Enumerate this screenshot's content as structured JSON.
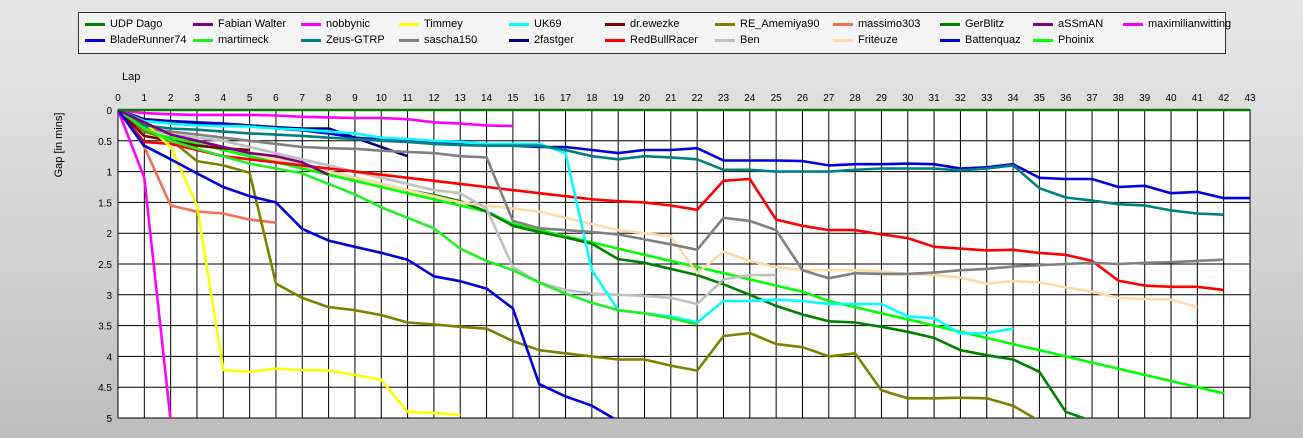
{
  "chart_data": {
    "type": "line",
    "xlabel": "Lap",
    "ylabel": "Gap [in mins]",
    "xlim": [
      0,
      43
    ],
    "ylim": [
      0,
      5
    ],
    "x_ticks": [
      0,
      1,
      2,
      3,
      4,
      5,
      6,
      7,
      8,
      9,
      10,
      11,
      12,
      13,
      14,
      15,
      16,
      17,
      18,
      19,
      20,
      21,
      22,
      23,
      24,
      25,
      26,
      27,
      28,
      29,
      30,
      31,
      32,
      33,
      34,
      35,
      36,
      37,
      38,
      39,
      40,
      41,
      42,
      43
    ],
    "y_ticks": [
      {
        "value": 0,
        "label": "0"
      },
      {
        "value": 0.5,
        "label": "0.5"
      },
      {
        "value": 1,
        "label": "1"
      },
      {
        "value": 1.5,
        "label": "1.5"
      },
      {
        "value": 2,
        "label": "2"
      },
      {
        "value": 2.5,
        "label": "2.5"
      },
      {
        "value": 3,
        "label": "3"
      },
      {
        "value": 3.5,
        "label": "3.5"
      },
      {
        "value": 4,
        "label": "4"
      },
      {
        "value": 4.5,
        "label": "4.5"
      },
      {
        "value": 5,
        "label": "5"
      }
    ],
    "y_inverted": true,
    "grid": true,
    "legend_position": "top",
    "series": [
      {
        "name": "UDP Dago",
        "color": "#008000",
        "values": [
          0,
          0,
          0,
          0,
          0,
          0,
          0,
          0,
          0,
          0,
          0,
          0,
          0,
          0,
          0,
          0,
          0,
          0,
          0,
          0,
          0,
          0,
          0,
          0,
          0,
          0,
          0,
          0,
          0,
          0,
          0,
          0,
          0,
          0,
          0,
          0,
          0,
          0,
          0,
          0,
          0,
          0,
          0,
          0
        ]
      },
      {
        "name": "BladeRunner74",
        "color": "#0000e0",
        "values": [
          0,
          0.58,
          0.8,
          1.03,
          1.25,
          1.4,
          1.5,
          1.93,
          2.12,
          2.22,
          2.32,
          2.43,
          2.7,
          2.78,
          2.9,
          3.22,
          4.45,
          4.65,
          4.8,
          5.05
        ]
      },
      {
        "name": "Fabian Walter",
        "color": "#800080",
        "values": [
          0,
          0.2,
          0.4,
          0.5,
          0.6,
          0.7,
          0.75,
          0.85,
          1.05
        ]
      },
      {
        "name": "martimeck",
        "color": "#22ee22",
        "values": [
          0,
          0.3,
          0.5,
          0.63,
          0.75,
          0.87,
          0.95,
          1.03,
          1.2,
          1.37,
          1.58,
          1.75,
          1.92,
          2.25,
          2.45,
          2.6,
          2.8,
          2.98,
          3.13,
          3.25,
          3.3,
          3.38,
          3.48
        ]
      },
      {
        "name": "nobbynic",
        "color": "#ff00ff",
        "values": [
          0,
          0.05,
          0.07,
          0.08,
          0.08,
          0.08,
          0.09,
          0.11,
          0.12,
          0.13,
          0.13,
          0.15,
          0.2,
          0.22,
          0.25,
          0.26
        ]
      },
      {
        "name": "Zeus-GTRP",
        "color": "#008080",
        "values": [
          0,
          0.25,
          0.3,
          0.32,
          0.35,
          0.38,
          0.4,
          0.42,
          0.45,
          0.47,
          0.5,
          0.52,
          0.55,
          0.57,
          0.58,
          0.58,
          0.58,
          0.65,
          0.75,
          0.8,
          0.75,
          0.77,
          0.8,
          0.97,
          0.97,
          1.0,
          1.0,
          1.0,
          0.97,
          0.95,
          0.95,
          0.95,
          0.98,
          0.95,
          0.9,
          1.27,
          1.42,
          1.47,
          1.53,
          1.55,
          1.63,
          1.68,
          1.7
        ]
      },
      {
        "name": "Timmey",
        "color": "#ffff00",
        "values": [
          0,
          0.2,
          0.6,
          1.55,
          4.22,
          4.25,
          4.2,
          4.22,
          4.23,
          4.3,
          4.38,
          4.9,
          4.92,
          4.95
        ]
      },
      {
        "name": "sascha150",
        "color": "#808080",
        "values": [
          0,
          0.3,
          0.35,
          0.4,
          0.45,
          0.5,
          0.55,
          0.6,
          0.62,
          0.63,
          0.66,
          0.68,
          0.7,
          0.75,
          0.77,
          1.8,
          1.92,
          1.95,
          1.98,
          2.02,
          2.1,
          2.18,
          2.27,
          1.75,
          1.8,
          1.95,
          2.6,
          2.73,
          2.65,
          2.66,
          2.66,
          2.64,
          2.6,
          2.58,
          2.54,
          2.52,
          2.5,
          2.48,
          2.5,
          2.48,
          2.47,
          2.45,
          2.43
        ]
      },
      {
        "name": "UK69",
        "color": "#00ffff",
        "values": [
          0,
          0.18,
          0.22,
          0.25,
          0.26,
          0.27,
          0.3,
          0.32,
          0.35,
          0.38,
          0.45,
          0.47,
          0.5,
          0.52,
          0.55,
          0.55,
          0.55,
          0.7,
          2.6,
          3.25,
          3.3,
          3.35,
          3.45,
          3.1,
          3.1,
          3.08,
          3.1,
          3.15,
          3.15,
          3.15,
          3.35,
          3.38,
          3.63,
          3.62,
          3.55
        ]
      },
      {
        "name": "2fastger",
        "color": "#000080",
        "values": [
          0,
          0.15,
          0.2,
          0.23,
          0.25,
          0.25,
          0.28,
          0.3,
          0.3,
          0.45,
          0.6,
          0.75
        ]
      },
      {
        "name": "dr.ewezke",
        "color": "#800000",
        "values": [
          0,
          0.42,
          0.5,
          0.58,
          0.62,
          0.65
        ]
      },
      {
        "name": "RedBullRacer",
        "color": "#ff0000",
        "values": [
          0,
          0.52,
          0.55,
          0.65,
          0.75,
          0.8,
          0.85,
          0.9,
          0.95,
          1.0,
          1.05,
          1.1,
          1.15,
          1.2,
          1.25,
          1.3,
          1.35,
          1.4,
          1.45,
          1.48,
          1.5,
          1.55,
          1.62,
          1.15,
          1.12,
          1.78,
          1.88,
          1.95,
          1.95,
          2.02,
          2.08,
          2.22,
          2.25,
          2.28,
          2.27,
          2.32,
          2.35,
          2.45,
          2.77,
          2.85,
          2.87,
          2.87,
          2.92
        ]
      },
      {
        "name": "RE_Amemiya90",
        "color": "#808000",
        "values": [
          0,
          0.35,
          0.48,
          0.83,
          0.9,
          1.02,
          2.82,
          3.05,
          3.2,
          3.25,
          3.33,
          3.45,
          3.48,
          3.52,
          3.55,
          3.75,
          3.9,
          3.95,
          4.0,
          4.05,
          4.05,
          4.15,
          4.23,
          3.67,
          3.62,
          3.8,
          3.85,
          4.0,
          3.95,
          4.55,
          4.68,
          4.68,
          4.67,
          4.68,
          4.8,
          5.05
        ]
      },
      {
        "name": "Ben",
        "color": "#c0c0c0",
        "values": [
          0,
          0.3,
          0.4,
          0.45,
          0.5,
          0.6,
          0.7,
          0.8,
          0.9,
          1.0,
          1.1,
          1.2,
          1.3,
          1.35,
          1.6,
          2.55,
          2.8,
          2.92,
          2.98,
          3.0,
          3.02,
          3.05,
          3.15,
          2.75,
          2.68,
          2.68
        ]
      },
      {
        "name": "massimo303",
        "color": "#f07050",
        "values": [
          0,
          0.6,
          1.55,
          1.65,
          1.68,
          1.78,
          1.83
        ]
      },
      {
        "name": "Friteuze",
        "color": "#ffd9a8",
        "values": [
          0,
          0.3,
          0.4,
          0.5,
          0.6,
          0.7,
          0.8,
          0.9,
          1.0,
          1.1,
          1.2,
          1.3,
          1.4,
          1.5,
          1.55,
          1.6,
          1.65,
          1.75,
          1.85,
          1.95,
          2.0,
          2.05,
          2.65,
          2.3,
          2.45,
          2.55,
          2.6,
          2.6,
          2.6,
          2.62,
          2.66,
          2.68,
          2.72,
          2.82,
          2.78,
          2.8,
          2.88,
          2.95,
          3.05,
          3.07,
          3.08,
          3.2
        ]
      },
      {
        "name": "GerBlitz",
        "color": "#008000",
        "values": [
          0,
          0.25,
          0.4,
          0.5,
          0.6,
          0.7,
          0.8,
          0.9,
          1.0,
          1.1,
          1.2,
          1.3,
          1.38,
          1.48,
          1.65,
          1.88,
          1.98,
          2.07,
          2.17,
          2.42,
          2.48,
          2.58,
          2.68,
          2.83,
          3.0,
          3.18,
          3.32,
          3.43,
          3.45,
          3.52,
          3.6,
          3.7,
          3.9,
          3.98,
          4.05,
          4.25,
          4.9,
          5.05
        ]
      },
      {
        "name": "Battenquaz",
        "color": "#0000e0",
        "values": [
          0,
          0.15,
          0.18,
          0.2,
          0.22,
          0.25,
          0.3,
          0.33,
          0.38,
          0.45,
          0.48,
          0.5,
          0.52,
          0.55,
          0.57,
          0.58,
          0.6,
          0.6,
          0.65,
          0.7,
          0.65,
          0.65,
          0.62,
          0.82,
          0.82,
          0.82,
          0.83,
          0.9,
          0.88,
          0.88,
          0.87,
          0.88,
          0.95,
          0.93,
          0.88,
          1.1,
          1.12,
          1.12,
          1.25,
          1.23,
          1.35,
          1.33,
          1.43,
          1.43
        ]
      },
      {
        "name": "aSSmAN",
        "color": "#800080",
        "values": []
      },
      {
        "name": "Phoinix",
        "color": "#00ff00",
        "values": [
          0,
          0.35,
          0.45,
          0.55,
          0.65,
          0.75,
          0.85,
          0.95,
          1.05,
          1.15,
          1.25,
          1.35,
          1.45,
          1.55,
          1.65,
          1.85,
          1.95,
          2.05,
          2.15,
          2.25,
          2.35,
          2.45,
          2.55,
          2.65,
          2.75,
          2.85,
          2.95,
          3.1,
          3.2,
          3.3,
          3.4,
          3.5,
          3.6,
          3.7,
          3.8,
          3.9,
          4.0,
          4.1,
          4.2,
          4.3,
          4.4,
          4.5,
          4.6
        ]
      },
      {
        "name": "maximilianwitting",
        "color": "#ff00ff",
        "values": [
          0,
          1.1,
          5.05
        ]
      }
    ]
  }
}
